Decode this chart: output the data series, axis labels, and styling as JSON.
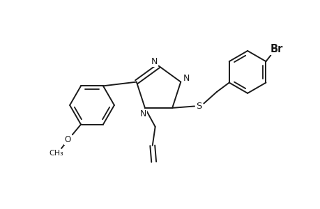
{
  "background": "#ffffff",
  "line_color": "#1a1a1a",
  "line_width": 1.4,
  "font_size": 8.5,
  "figsize": [
    4.6,
    3.0
  ],
  "dpi": 100,
  "xlim": [
    0,
    9.2
  ],
  "ylim": [
    0,
    6.0
  ]
}
